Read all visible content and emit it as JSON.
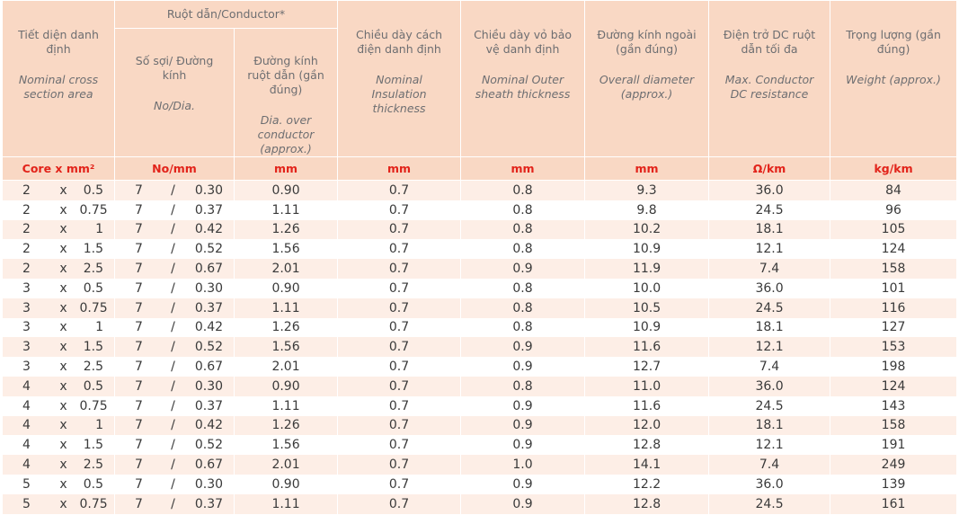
{
  "table": {
    "group_header": "Ruột dẫn/Conductor*",
    "headers": [
      {
        "vi": "Tiết diện danh định",
        "en": "Nominal cross section area"
      },
      {
        "vi": "Số sợi/ Đường kính",
        "en": "No/Dia."
      },
      {
        "vi": "Đường kính ruột dẫn (gần đúng)",
        "en": "Dia. over conductor (approx.)"
      },
      {
        "vi": "Chiều dày cách điện danh định",
        "en": "Nominal Insulation thickness"
      },
      {
        "vi": "Chiều dày vỏ bảo vệ danh định",
        "en": "Nominal Outer sheath thickness"
      },
      {
        "vi": "Đường kính ngoài (gần đúng)",
        "en": "Overall diameter (approx.)"
      },
      {
        "vi": "Điện trở DC ruột dẫn tối đa",
        "en": "Max. Conductor DC resistance"
      },
      {
        "vi": "Trọng lượng (gần đúng)",
        "en": "Weight (approx.)"
      }
    ],
    "units": [
      "Core x mm²",
      "No/mm",
      "mm",
      "mm",
      "mm",
      "mm",
      "Ω/km",
      "kg/km"
    ],
    "rows": [
      [
        "2",
        "x",
        "0.5",
        "7",
        "/",
        "0.30",
        "0.90",
        "0.7",
        "0.8",
        "9.3",
        "36.0",
        "84"
      ],
      [
        "2",
        "x",
        "0.75",
        "7",
        "/",
        "0.37",
        "1.11",
        "0.7",
        "0.8",
        "9.8",
        "24.5",
        "96"
      ],
      [
        "2",
        "x",
        "1",
        "7",
        "/",
        "0.42",
        "1.26",
        "0.7",
        "0.8",
        "10.2",
        "18.1",
        "105"
      ],
      [
        "2",
        "x",
        "1.5",
        "7",
        "/",
        "0.52",
        "1.56",
        "0.7",
        "0.8",
        "10.9",
        "12.1",
        "124"
      ],
      [
        "2",
        "x",
        "2.5",
        "7",
        "/",
        "0.67",
        "2.01",
        "0.7",
        "0.9",
        "11.9",
        "7.4",
        "158"
      ],
      [
        "3",
        "x",
        "0.5",
        "7",
        "/",
        "0.30",
        "0.90",
        "0.7",
        "0.8",
        "10.0",
        "36.0",
        "101"
      ],
      [
        "3",
        "x",
        "0.75",
        "7",
        "/",
        "0.37",
        "1.11",
        "0.7",
        "0.8",
        "10.5",
        "24.5",
        "116"
      ],
      [
        "3",
        "x",
        "1",
        "7",
        "/",
        "0.42",
        "1.26",
        "0.7",
        "0.8",
        "10.9",
        "18.1",
        "127"
      ],
      [
        "3",
        "x",
        "1.5",
        "7",
        "/",
        "0.52",
        "1.56",
        "0.7",
        "0.9",
        "11.6",
        "12.1",
        "153"
      ],
      [
        "3",
        "x",
        "2.5",
        "7",
        "/",
        "0.67",
        "2.01",
        "0.7",
        "0.9",
        "12.7",
        "7.4",
        "198"
      ],
      [
        "4",
        "x",
        "0.5",
        "7",
        "/",
        "0.30",
        "0.90",
        "0.7",
        "0.8",
        "11.0",
        "36.0",
        "124"
      ],
      [
        "4",
        "x",
        "0.75",
        "7",
        "/",
        "0.37",
        "1.11",
        "0.7",
        "0.9",
        "11.6",
        "24.5",
        "143"
      ],
      [
        "4",
        "x",
        "1",
        "7",
        "/",
        "0.42",
        "1.26",
        "0.7",
        "0.9",
        "12.0",
        "18.1",
        "158"
      ],
      [
        "4",
        "x",
        "1.5",
        "7",
        "/",
        "0.52",
        "1.56",
        "0.7",
        "0.9",
        "12.8",
        "12.1",
        "191"
      ],
      [
        "4",
        "x",
        "2.5",
        "7",
        "/",
        "0.67",
        "2.01",
        "0.7",
        "1.0",
        "14.1",
        "7.4",
        "249"
      ],
      [
        "5",
        "x",
        "0.5",
        "7",
        "/",
        "0.30",
        "0.90",
        "0.7",
        "0.9",
        "12.2",
        "36.0",
        "139"
      ],
      [
        "5",
        "x",
        "0.75",
        "7",
        "/",
        "0.37",
        "1.11",
        "0.7",
        "0.9",
        "12.8",
        "24.5",
        "161"
      ]
    ]
  }
}
